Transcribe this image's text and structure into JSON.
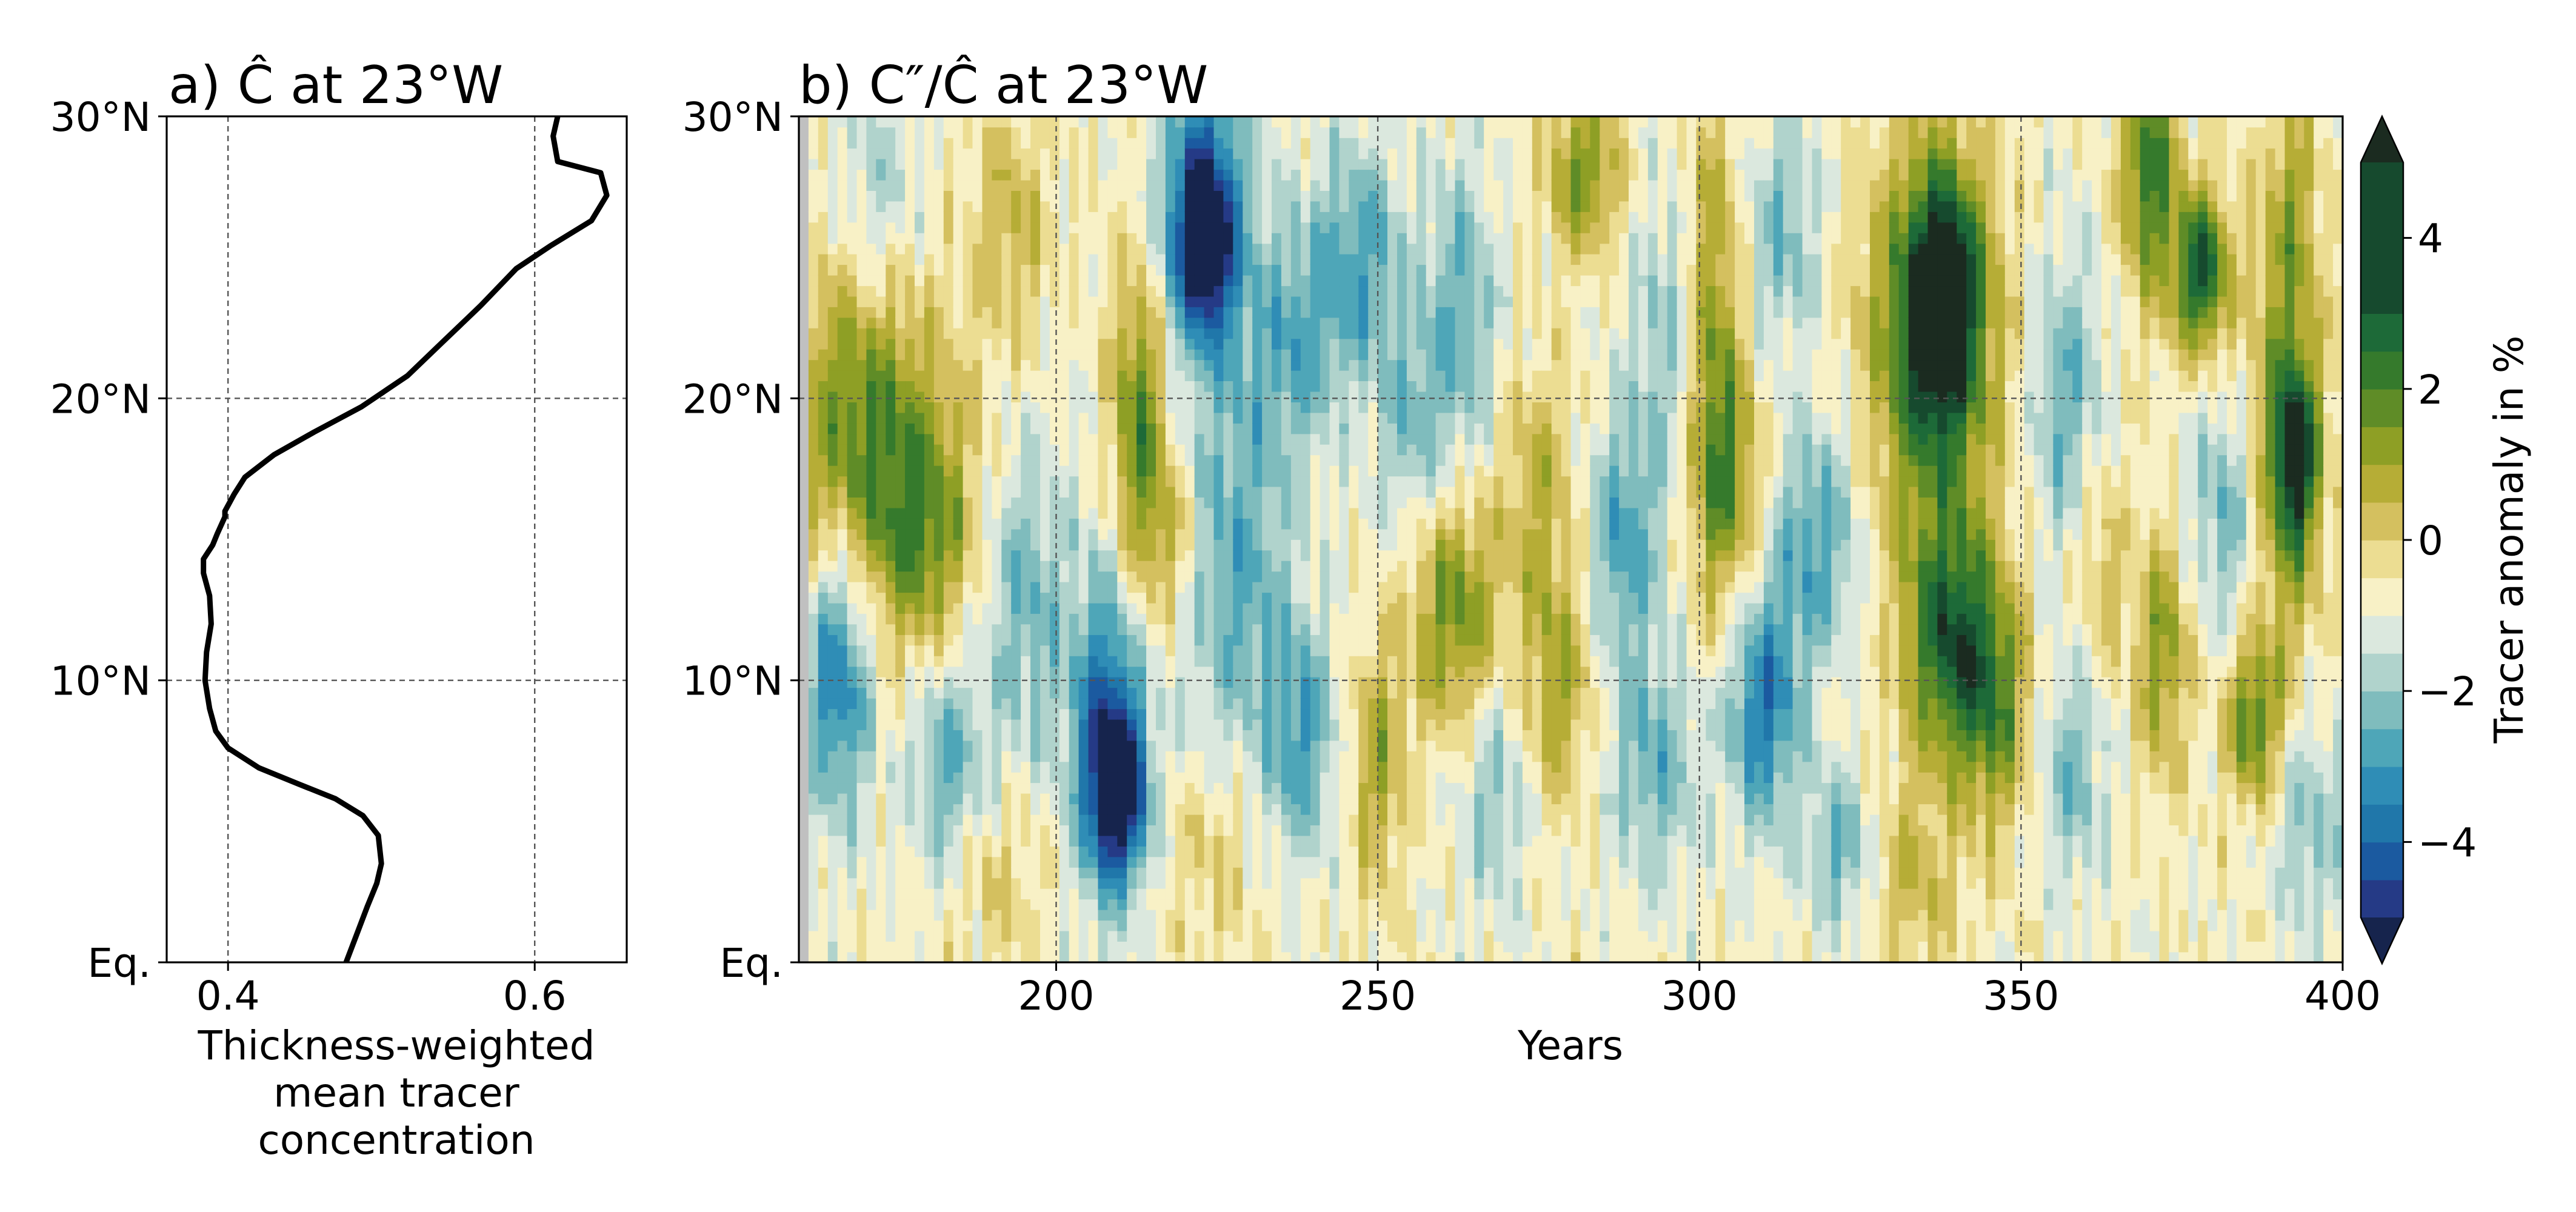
{
  "figure": {
    "panel_a_title": "a) Ĉ at 23°W",
    "panel_b_title": "b) C″/Ĉ at 23°W"
  },
  "colors": {
    "profile_line": "#000000",
    "nan_strip": "#c0c0c0",
    "colormap": [
      "#16244d",
      "#253a86",
      "#1b5aa0",
      "#2077aa",
      "#2f8db6",
      "#4ea6b8",
      "#7fbcbd",
      "#b0d3cc",
      "#dbe8de",
      "#f8f1c6",
      "#ecdd92",
      "#d4c05f",
      "#b6ad36",
      "#8e9f25",
      "#5f8c27",
      "#357a2c",
      "#1d6a38",
      "#164a2e",
      "#1b2b20"
    ]
  },
  "chart_data": [
    {
      "type": "line",
      "panel": "a",
      "title": "a) Ĉ at 23°W",
      "xlabel": "Thickness-weighted mean tracer concentration",
      "xlabel_lines": [
        "Thickness-weighted",
        "mean tracer",
        "concentration"
      ],
      "ylabel": "",
      "xlim": [
        0.36,
        0.66
      ],
      "ylim": [
        0,
        30
      ],
      "xticks": [
        0.4,
        0.6
      ],
      "xtick_labels": [
        "0.4",
        "0.6"
      ],
      "yticks": [
        0,
        10,
        20,
        30
      ],
      "ytick_labels": [
        "Eq.",
        "10°N",
        "20°N",
        "30°N"
      ],
      "grid": true,
      "series": [
        {
          "x": [
            0.477,
            0.484,
            0.491,
            0.497,
            0.5,
            0.498,
            0.488,
            0.47,
            0.447,
            0.42,
            0.4,
            0.392,
            0.388,
            0.385,
            0.386,
            0.389,
            0.388,
            0.384,
            0.384,
            0.39,
            0.393,
            0.398,
            0.398,
            0.404,
            0.411,
            0.43,
            0.456,
            0.487,
            0.517,
            0.54,
            0.565,
            0.588,
            0.61,
            0.637,
            0.647,
            0.643,
            0.615,
            0.612,
            0.615
          ],
          "y": [
            0,
            1,
            2,
            2.8,
            3.5,
            4.5,
            5.2,
            5.8,
            6.3,
            6.9,
            7.6,
            8.2,
            9.0,
            10.0,
            11.0,
            12.0,
            13.0,
            13.8,
            14.3,
            14.8,
            15.2,
            15.8,
            16.0,
            16.6,
            17.2,
            18.0,
            18.8,
            19.7,
            20.8,
            22.0,
            23.3,
            24.6,
            25.4,
            26.3,
            27.2,
            28.0,
            28.4,
            29.3,
            30.0
          ]
        }
      ]
    },
    {
      "type": "heatmap",
      "panel": "b",
      "title": "b) C″/Ĉ at 23°W",
      "xlabel": "Years",
      "ylabel": "",
      "xlim": [
        160,
        400
      ],
      "ylim": [
        0,
        30
      ],
      "xticks": [
        200,
        250,
        300,
        350,
        400
      ],
      "xtick_labels": [
        "200",
        "250",
        "300",
        "350",
        "400"
      ],
      "yticks": [
        0,
        10,
        20,
        30
      ],
      "ytick_labels": [
        "Eq.",
        "10°N",
        "20°N",
        "30°N"
      ],
      "grid": true,
      "value_range": [
        -5,
        5
      ],
      "colorbar": {
        "label": "Tracer anomaly in %",
        "ticks": [
          -4,
          -2,
          0,
          2,
          4
        ],
        "tick_labels": [
          "−4",
          "−2",
          "0",
          "2",
          "4"
        ],
        "levels": [
          -5,
          -4.5,
          -4,
          -3.5,
          -3,
          -2.5,
          -2,
          -1.5,
          -1,
          -0.5,
          0,
          0.5,
          1,
          1.5,
          2,
          2.5,
          3,
          3.5,
          4,
          4.5,
          5
        ],
        "extend": "both"
      },
      "features": [
        {
          "x": 166,
          "y": 10.2,
          "sx": 4,
          "sy": 3.5,
          "v": -3.5
        },
        {
          "x": 170,
          "y": 19,
          "sx": 9,
          "sy": 4.5,
          "v": 3.0
        },
        {
          "x": 180,
          "y": 15,
          "sx": 6,
          "sy": 3,
          "v": 2.2
        },
        {
          "x": 172,
          "y": 27,
          "sx": 5,
          "sy": 3,
          "v": -1.5
        },
        {
          "x": 183,
          "y": 7,
          "sx": 4,
          "sy": 3,
          "v": -2.2
        },
        {
          "x": 195,
          "y": 13,
          "sx": 5,
          "sy": 4,
          "v": -2.0
        },
        {
          "x": 193,
          "y": 26,
          "sx": 4,
          "sy": 3,
          "v": 1.5
        },
        {
          "x": 190,
          "y": 3,
          "sx": 6,
          "sy": 2,
          "v": 1.0
        },
        {
          "x": 208,
          "y": 8,
          "sx": 4,
          "sy": 4,
          "v": -4.0
        },
        {
          "x": 210,
          "y": 6,
          "sx": 3,
          "sy": 2,
          "v": -4.3
        },
        {
          "x": 213,
          "y": 19,
          "sx": 3,
          "sy": 4,
          "v": 3.2
        },
        {
          "x": 218,
          "y": 15,
          "sx": 3,
          "sy": 2,
          "v": 1.5
        },
        {
          "x": 223,
          "y": 27,
          "sx": 5,
          "sy": 4,
          "v": -3.6
        },
        {
          "x": 223,
          "y": 25.5,
          "sx": 3,
          "sy": 2,
          "v": -4.2
        },
        {
          "x": 228,
          "y": 14,
          "sx": 6,
          "sy": 5,
          "v": -2.2
        },
        {
          "x": 225,
          "y": 4,
          "sx": 5,
          "sy": 2.5,
          "v": 1.0
        },
        {
          "x": 237,
          "y": 22,
          "sx": 5,
          "sy": 3,
          "v": -2.0
        },
        {
          "x": 238,
          "y": 8,
          "sx": 4,
          "sy": 3,
          "v": -2.4
        },
        {
          "x": 247,
          "y": 25,
          "sx": 5,
          "sy": 3,
          "v": -2.3
        },
        {
          "x": 250,
          "y": 7,
          "sx": 3,
          "sy": 3,
          "v": 2.0
        },
        {
          "x": 255,
          "y": 19,
          "sx": 4,
          "sy": 3,
          "v": -1.6
        },
        {
          "x": 262,
          "y": 12.5,
          "sx": 5,
          "sy": 3,
          "v": 2.8
        },
        {
          "x": 263,
          "y": 23,
          "sx": 4,
          "sy": 4,
          "v": -2.0
        },
        {
          "x": 268,
          "y": 6,
          "sx": 4,
          "sy": 3,
          "v": -1.6
        },
        {
          "x": 275,
          "y": 17,
          "sx": 4,
          "sy": 3,
          "v": 1.5
        },
        {
          "x": 278,
          "y": 10,
          "sx": 4,
          "sy": 3,
          "v": 2.0
        },
        {
          "x": 282,
          "y": 28,
          "sx": 4,
          "sy": 2,
          "v": 2.6
        },
        {
          "x": 288,
          "y": 15,
          "sx": 4,
          "sy": 3,
          "v": -2.4
        },
        {
          "x": 293,
          "y": 7,
          "sx": 5,
          "sy": 3,
          "v": -2.0
        },
        {
          "x": 295,
          "y": 22,
          "sx": 4,
          "sy": 4,
          "v": -1.6
        },
        {
          "x": 302,
          "y": 22,
          "sx": 3,
          "sy": 6,
          "v": 2.5
        },
        {
          "x": 305,
          "y": 17,
          "sx": 4,
          "sy": 3,
          "v": 2.0
        },
        {
          "x": 310,
          "y": 9,
          "sx": 4,
          "sy": 3,
          "v": -3.3
        },
        {
          "x": 313,
          "y": 26,
          "sx": 4,
          "sy": 3,
          "v": -1.8
        },
        {
          "x": 318,
          "y": 15,
          "sx": 5,
          "sy": 3,
          "v": -2.4
        },
        {
          "x": 322,
          "y": 4,
          "sx": 4,
          "sy": 2,
          "v": -2.0
        },
        {
          "x": 336,
          "y": 22,
          "sx": 7,
          "sy": 5,
          "v": 3.6
        },
        {
          "x": 338,
          "y": 23.5,
          "sx": 4,
          "sy": 3,
          "v": 4.2
        },
        {
          "x": 339,
          "y": 11.5,
          "sx": 5,
          "sy": 3,
          "v": 4.0
        },
        {
          "x": 346,
          "y": 9,
          "sx": 4,
          "sy": 3,
          "v": 2.6
        },
        {
          "x": 333,
          "y": 3,
          "sx": 5,
          "sy": 2.5,
          "v": 1.4
        },
        {
          "x": 357,
          "y": 20,
          "sx": 4,
          "sy": 4,
          "v": -2.0
        },
        {
          "x": 358,
          "y": 7,
          "sx": 4,
          "sy": 3,
          "v": -1.8
        },
        {
          "x": 362,
          "y": 14,
          "sx": 3,
          "sy": 3,
          "v": 1.4
        },
        {
          "x": 370,
          "y": 28,
          "sx": 3,
          "sy": 3,
          "v": 3.6
        },
        {
          "x": 372,
          "y": 11,
          "sx": 3,
          "sy": 3,
          "v": 2.4
        },
        {
          "x": 378,
          "y": 24.5,
          "sx": 3,
          "sy": 2,
          "v": 4.5
        },
        {
          "x": 382,
          "y": 16,
          "sx": 4,
          "sy": 3,
          "v": -2.0
        },
        {
          "x": 386,
          "y": 8.5,
          "sx": 3,
          "sy": 2,
          "v": 3.0
        },
        {
          "x": 391,
          "y": 18,
          "sx": 4,
          "sy": 5,
          "v": 3.0
        },
        {
          "x": 393,
          "y": 18,
          "sx": 2,
          "sy": 2,
          "v": 4.0
        },
        {
          "x": 395,
          "y": 5,
          "sx": 4,
          "sy": 3,
          "v": -1.6
        },
        {
          "x": 392,
          "y": 27,
          "sx": 3,
          "sy": 3,
          "v": 1.6
        }
      ]
    }
  ]
}
